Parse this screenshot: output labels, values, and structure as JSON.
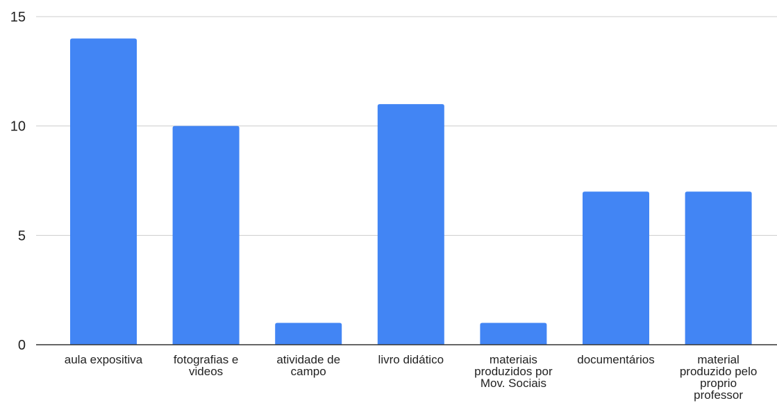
{
  "chart_data": {
    "type": "bar",
    "categories": [
      "aula expositiva",
      "fotografias e videos",
      "atividade de campo",
      "livro didático",
      "materiais produzidos por Mov. Sociais",
      "documentários",
      "material produzido pelo proprio professor"
    ],
    "category_label_lines": [
      [
        "aula expositiva"
      ],
      [
        "fotografias e",
        "videos"
      ],
      [
        "atividade de",
        "campo"
      ],
      [
        "livro didático"
      ],
      [
        "materiais",
        "produzidos por",
        "Mov. Sociais"
      ],
      [
        "documentários"
      ],
      [
        "material",
        "produzido pelo",
        "proprio",
        "professor"
      ]
    ],
    "values": [
      14,
      10,
      1,
      11,
      1,
      7,
      7
    ],
    "ylim": [
      0,
      15
    ],
    "yticks": [
      "0",
      "5",
      "10",
      "15"
    ],
    "title": "",
    "xlabel": "",
    "ylabel": "",
    "grid": true,
    "legend": "none",
    "colors": {
      "bar": "#4285f4",
      "grid": "#cccccc",
      "axis": "#333333",
      "text": "#222222"
    }
  }
}
